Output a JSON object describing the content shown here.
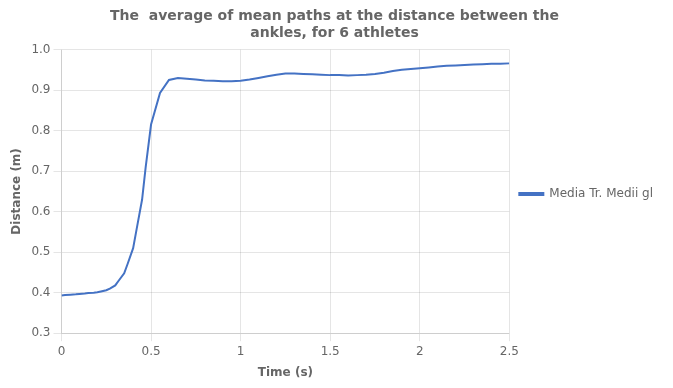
{
  "chart_data": {
    "type": "line",
    "title": "The  average of mean paths at the distance between the\nankles, for 6 athletes",
    "x_label": "Time (s)",
    "y_label": "Distance (m)",
    "x": [
      0.0,
      0.02,
      0.05,
      0.08,
      0.1,
      0.13,
      0.15,
      0.18,
      0.2,
      0.22,
      0.25,
      0.27,
      0.3,
      0.32,
      0.35,
      0.37,
      0.4,
      0.42,
      0.45,
      0.47,
      0.5,
      0.55,
      0.6,
      0.65,
      0.7,
      0.75,
      0.8,
      0.85,
      0.9,
      0.95,
      1.0,
      1.05,
      1.1,
      1.15,
      1.2,
      1.25,
      1.3,
      1.35,
      1.4,
      1.45,
      1.5,
      1.55,
      1.6,
      1.65,
      1.7,
      1.75,
      1.8,
      1.85,
      1.9,
      1.95,
      2.0,
      2.05,
      2.1,
      2.15,
      2.2,
      2.25,
      2.3,
      2.35,
      2.4,
      2.45,
      2.5
    ],
    "series": [
      {
        "name": "Media Tr. Medii gl",
        "color": "#4472C4",
        "values": [
          0.393,
          0.394,
          0.395,
          0.396,
          0.397,
          0.398,
          0.399,
          0.4,
          0.401,
          0.403,
          0.406,
          0.41,
          0.418,
          0.43,
          0.448,
          0.472,
          0.51,
          0.558,
          0.63,
          0.71,
          0.815,
          0.893,
          0.925,
          0.93,
          0.928,
          0.926,
          0.924,
          0.923,
          0.922,
          0.922,
          0.923,
          0.926,
          0.93,
          0.934,
          0.938,
          0.941,
          0.941,
          0.94,
          0.939,
          0.938,
          0.937,
          0.937,
          0.936,
          0.937,
          0.938,
          0.94,
          0.943,
          0.947,
          0.95,
          0.952,
          0.954,
          0.956,
          0.958,
          0.96,
          0.961,
          0.962,
          0.963,
          0.964,
          0.965,
          0.965,
          0.966
        ]
      }
    ],
    "xlim": [
      0,
      2.5
    ],
    "ylim": [
      0.3,
      1.0
    ],
    "xticks": [
      0,
      0.5,
      1,
      1.5,
      2,
      2.5
    ],
    "yticks": [
      0.3,
      0.4,
      0.5,
      0.6,
      0.7,
      0.8,
      0.9,
      {
        "value": 1.0,
        "label": "1.0"
      }
    ],
    "grid": true,
    "legend": "right"
  }
}
